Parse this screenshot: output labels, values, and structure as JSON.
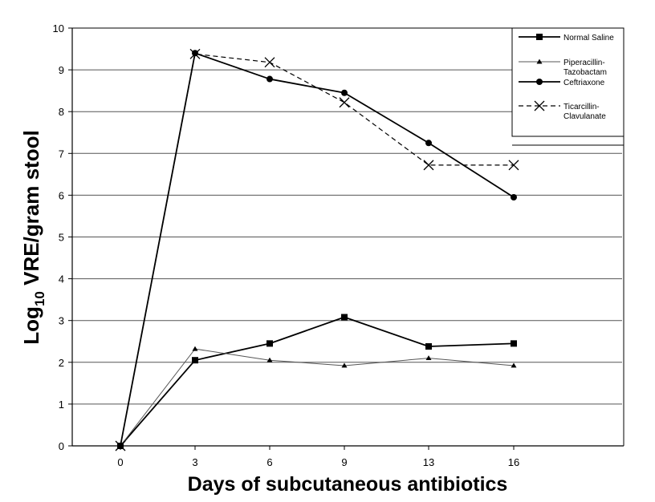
{
  "chart_data": {
    "type": "line",
    "x": [
      0,
      3,
      6,
      9,
      13,
      16
    ],
    "categories": [
      "0",
      "3",
      "6",
      "9",
      "13",
      "16"
    ],
    "xlabel": "Days of subcutaneous antibiotics",
    "ylabel": {
      "base": "Log",
      "sub": "10",
      "rest": " VRE/gram stool"
    },
    "ylim": [
      0,
      10
    ],
    "yticks": [
      "0",
      "1",
      "2",
      "3",
      "4",
      "5",
      "6",
      "7",
      "8",
      "9",
      "10"
    ],
    "grid": "horizontal",
    "legend_position": "top-right",
    "series": [
      {
        "name": "Normal Saline",
        "marker": "square",
        "dash": "solid",
        "values": [
          0,
          2.05,
          2.45,
          3.08,
          2.38,
          2.45
        ]
      },
      {
        "name_lines": [
          "Piperacillin-",
          "Tazobactam"
        ],
        "marker": "triangle",
        "dash": "thin",
        "values": [
          0,
          2.32,
          2.05,
          1.92,
          2.1,
          1.92
        ]
      },
      {
        "name": "Ceftriaxone",
        "marker": "circle",
        "dash": "solid",
        "values": [
          0,
          9.4,
          8.78,
          8.45,
          7.25,
          5.95
        ]
      },
      {
        "name_lines": [
          "Ticarcillin-",
          "Clavulanate"
        ],
        "marker": "x",
        "dash": "dashed",
        "values": [
          0,
          9.38,
          9.18,
          8.22,
          6.72,
          6.72
        ]
      }
    ]
  }
}
